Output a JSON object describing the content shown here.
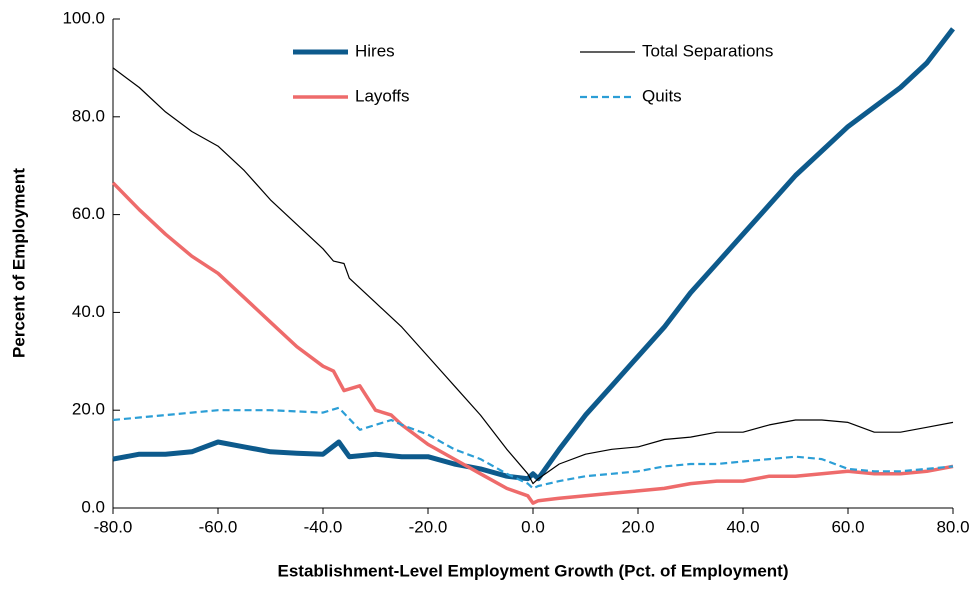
{
  "chart_data": {
    "type": "line",
    "x_label": "Establishment-Level Employment Growth (Pct. of Employment)",
    "y_label": "Percent of Employment",
    "xlim": [
      -80,
      80
    ],
    "ylim": [
      0,
      100
    ],
    "xticks": [
      {
        "value": -80,
        "label": "-80.0"
      },
      {
        "value": -60,
        "label": "-60.0"
      },
      {
        "value": -40,
        "label": "-40.0"
      },
      {
        "value": -20,
        "label": "-20.0"
      },
      {
        "value": 0,
        "label": "0.0"
      },
      {
        "value": 20,
        "label": "20.0"
      },
      {
        "value": 40,
        "label": "40.0"
      },
      {
        "value": 60,
        "label": "60.0"
      },
      {
        "value": 80,
        "label": "80.0"
      }
    ],
    "yticks": [
      {
        "value": 0,
        "label": "0.0"
      },
      {
        "value": 20,
        "label": "20.0"
      },
      {
        "value": 40,
        "label": "40.0"
      },
      {
        "value": 60,
        "label": "60.0"
      },
      {
        "value": 80,
        "label": "80.0"
      },
      {
        "value": 100,
        "label": "100.0"
      }
    ],
    "grid": false,
    "legend": "top",
    "series": [
      {
        "name": "Hires",
        "color": "#0d5a8c",
        "width": 5,
        "dashed": false,
        "x": [
          -80,
          -75,
          -70,
          -65,
          -60,
          -55,
          -50,
          -45,
          -40,
          -37,
          -35,
          -30,
          -25,
          -20,
          -15,
          -10,
          -5,
          -1,
          0,
          1,
          5,
          10,
          15,
          20,
          25,
          30,
          35,
          40,
          45,
          50,
          55,
          60,
          65,
          70,
          75,
          80
        ],
        "values": [
          10,
          11,
          11,
          11.5,
          13.5,
          12.5,
          11.5,
          11.2,
          11,
          13.5,
          10.5,
          11,
          10.5,
          10.5,
          9,
          8,
          6.5,
          6,
          7,
          6,
          12,
          19,
          25,
          31,
          37,
          44,
          50,
          56,
          62,
          68,
          73,
          78,
          82,
          86,
          91,
          98
        ]
      },
      {
        "name": "Total Separations",
        "color": "#000000",
        "width": 1.2,
        "dashed": false,
        "x": [
          -80,
          -75,
          -70,
          -65,
          -60,
          -55,
          -50,
          -45,
          -40,
          -38,
          -36,
          -35,
          -30,
          -25,
          -20,
          -15,
          -10,
          -5,
          -1,
          0,
          1,
          5,
          10,
          15,
          20,
          25,
          30,
          35,
          40,
          45,
          50,
          55,
          60,
          65,
          70,
          75,
          80
        ],
        "values": [
          90,
          86,
          81,
          77,
          74,
          69,
          63,
          58,
          53,
          50.5,
          50,
          47,
          42,
          37,
          31,
          25,
          19,
          12,
          7,
          5,
          6,
          9,
          11,
          12,
          12.5,
          14,
          14.5,
          15.5,
          15.5,
          17,
          18,
          18,
          17.5,
          15.5,
          15.5,
          16.5,
          17.5
        ]
      },
      {
        "name": "Layoffs",
        "color": "#ee6b6b",
        "width": 3.5,
        "dashed": false,
        "x": [
          -80,
          -75,
          -70,
          -65,
          -60,
          -55,
          -50,
          -45,
          -40,
          -38,
          -36,
          -33,
          -30,
          -27,
          -25,
          -20,
          -15,
          -10,
          -5,
          -1,
          0,
          1,
          5,
          10,
          15,
          20,
          25,
          30,
          35,
          40,
          45,
          50,
          55,
          60,
          65,
          70,
          75,
          80
        ],
        "values": [
          66.5,
          61,
          56,
          51.5,
          48,
          43,
          38,
          33,
          29,
          28,
          24,
          25,
          20,
          19,
          17,
          13,
          10,
          7,
          4,
          2.5,
          1,
          1.5,
          2,
          2.5,
          3,
          3.5,
          4,
          5,
          5.5,
          5.5,
          6.5,
          6.5,
          7,
          7.5,
          7,
          7,
          7.5,
          8.5
        ]
      },
      {
        "name": "Quits",
        "color": "#2b9ed6",
        "width": 2.2,
        "dashed": true,
        "x": [
          -80,
          -75,
          -70,
          -65,
          -60,
          -50,
          -40,
          -37,
          -33,
          -30,
          -27,
          -25,
          -20,
          -15,
          -10,
          -5,
          -1,
          0,
          1,
          5,
          10,
          15,
          20,
          25,
          30,
          35,
          40,
          45,
          50,
          55,
          60,
          65,
          70,
          75,
          80
        ],
        "values": [
          18,
          18.5,
          19,
          19.5,
          20,
          20,
          19.5,
          20.5,
          16,
          17,
          18,
          17,
          15,
          12,
          10,
          7,
          5,
          4,
          4.5,
          5.5,
          6.5,
          7,
          7.5,
          8.5,
          9,
          9,
          9.5,
          10,
          10.5,
          10,
          8,
          7.5,
          7.5,
          8,
          8.5
        ]
      }
    ]
  }
}
